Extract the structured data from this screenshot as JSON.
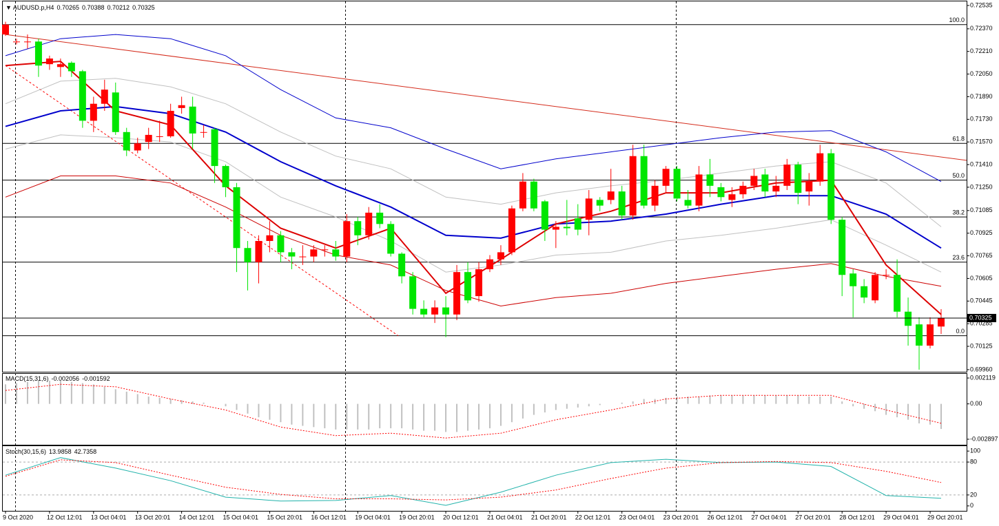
{
  "chart_data": [
    {
      "type": "candlestick",
      "title": "AUDUSD.p,H4",
      "up_color": "#ff0000",
      "down_color": "#00e600",
      "categories": [
        "9 Oct 2020",
        null,
        null,
        null,
        "12 Oct 12:01",
        null,
        null,
        null,
        "13 Oct 04:01",
        null,
        null,
        null,
        "13 Oct 20:01",
        null,
        null,
        null,
        "14 Oct 12:01",
        null,
        null,
        null,
        "15 Oct 04:01",
        null,
        null,
        null,
        "15 Oct 20:01",
        null,
        null,
        null,
        "16 Oct 12:01",
        null,
        null,
        null,
        "19 Oct 04:01",
        null,
        null,
        null,
        "19 Oct 20:01",
        null,
        null,
        null,
        "20 Oct 12:01",
        null,
        null,
        null,
        "21 Oct 04:01",
        null,
        null,
        null,
        "21 Oct 20:01",
        null,
        null,
        null,
        "22 Oct 12:01",
        null,
        null,
        null,
        "23 Oct 04:01",
        null,
        null,
        null,
        "23 Oct 20:01",
        null,
        null,
        null,
        "26 Oct 12:01",
        null,
        null,
        null,
        "27 Oct 04:01",
        null,
        null,
        null,
        "27 Oct 20:01",
        null,
        null,
        null,
        "28 Oct 12:01",
        null,
        null,
        null,
        "29 Oct 04:01",
        null,
        null,
        null,
        "29 Oct 20:01",
        null
      ],
      "open": [
        0.7233,
        0.7228,
        0.7228,
        0.7228,
        0.7212,
        0.721,
        0.7213,
        0.7207,
        0.7172,
        0.7184,
        0.7192,
        0.7164,
        0.7151,
        0.7157,
        0.7161,
        0.7161,
        0.7181,
        0.7182,
        0.7164,
        0.7166,
        0.714,
        0.7125,
        0.7082,
        0.7072,
        0.7087,
        0.7091,
        0.7079,
        0.7076,
        0.7076,
        0.7081,
        0.7081,
        0.7076,
        0.7101,
        0.7091,
        0.7107,
        0.7099,
        0.7078,
        0.7062,
        0.7039,
        0.7035,
        0.704,
        0.7035,
        0.7065,
        0.7048,
        0.7067,
        0.7074,
        0.7079,
        0.711,
        0.7129,
        0.7115,
        0.7095,
        0.7097,
        0.7103,
        0.7102,
        0.7116,
        0.7116,
        0.7122,
        0.7105,
        0.7147,
        0.7112,
        0.7126,
        0.7138,
        0.7116,
        0.7112,
        0.7134,
        0.7125,
        0.7116,
        0.712,
        0.7126,
        0.7134,
        0.7122,
        0.7126,
        0.7141,
        0.7122,
        0.7129,
        0.7149,
        0.7102,
        0.7064,
        0.7055,
        0.7045,
        0.7063,
        0.7063,
        0.7037,
        0.7028,
        0.7013,
        0.70265
      ],
      "high": [
        0.7242,
        0.723,
        0.7233,
        0.723,
        0.7218,
        0.7216,
        0.7214,
        0.7208,
        0.7189,
        0.7201,
        0.7199,
        0.7167,
        0.716,
        0.7167,
        0.7172,
        0.7184,
        0.7189,
        0.7189,
        0.7169,
        0.7167,
        0.7141,
        0.7128,
        0.7087,
        0.7091,
        0.7101,
        0.7094,
        0.7082,
        0.7084,
        0.7084,
        0.7084,
        0.7087,
        0.7106,
        0.7104,
        0.7111,
        0.7113,
        0.7101,
        0.7079,
        0.7065,
        0.7045,
        0.7045,
        0.7048,
        0.707,
        0.7072,
        0.7072,
        0.7077,
        0.7084,
        0.7112,
        0.7135,
        0.7131,
        0.7116,
        0.7101,
        0.7116,
        0.7113,
        0.7123,
        0.7118,
        0.7138,
        0.7126,
        0.7155,
        0.7155,
        0.713,
        0.714,
        0.714,
        0.7123,
        0.714,
        0.7145,
        0.7128,
        0.7125,
        0.7129,
        0.7138,
        0.7138,
        0.7133,
        0.7145,
        0.7143,
        0.7135,
        0.7155,
        0.7152,
        0.7104,
        0.7067,
        0.706,
        0.7065,
        0.7067,
        0.7074,
        0.7047,
        0.7033,
        0.7033,
        0.70388
      ],
      "low": [
        0.7232,
        0.7226,
        0.7223,
        0.7203,
        0.7208,
        0.7203,
        0.7203,
        0.7167,
        0.7164,
        0.7179,
        0.7162,
        0.7147,
        0.7149,
        0.7152,
        0.7157,
        0.716,
        0.7177,
        0.7152,
        0.716,
        0.7128,
        0.7118,
        0.7065,
        0.7052,
        0.7057,
        0.7079,
        0.7072,
        0.7067,
        0.707,
        0.7072,
        0.7076,
        0.7073,
        0.7072,
        0.7084,
        0.7088,
        0.7096,
        0.7076,
        0.7057,
        0.7035,
        0.7033,
        0.7029,
        0.7019,
        0.7031,
        0.7043,
        0.7044,
        0.7065,
        0.707,
        0.7077,
        0.7108,
        0.7108,
        0.7087,
        0.7082,
        0.7091,
        0.7091,
        0.7091,
        0.7108,
        0.7113,
        0.7102,
        0.7102,
        0.711,
        0.7108,
        0.7121,
        0.7115,
        0.711,
        0.7108,
        0.7118,
        0.7115,
        0.7111,
        0.7117,
        0.7123,
        0.7118,
        0.7118,
        0.7123,
        0.7113,
        0.7112,
        0.7126,
        0.7099,
        0.7048,
        0.7033,
        0.7043,
        0.7043,
        0.706,
        0.7033,
        0.7013,
        0.6996,
        0.7011,
        0.70212
      ],
      "close": [
        0.724,
        0.7228,
        0.7228,
        0.7211,
        0.7216,
        0.7212,
        0.7207,
        0.7172,
        0.7184,
        0.7194,
        0.7164,
        0.7151,
        0.7156,
        0.7162,
        0.7161,
        0.7179,
        0.7183,
        0.7163,
        0.7164,
        0.714,
        0.7125,
        0.7082,
        0.7072,
        0.7087,
        0.7091,
        0.7079,
        0.7076,
        0.7076,
        0.7081,
        0.7081,
        0.7076,
        0.7101,
        0.7091,
        0.7107,
        0.7099,
        0.7078,
        0.7062,
        0.7039,
        0.7035,
        0.704,
        0.7035,
        0.7065,
        0.7045,
        0.7067,
        0.7074,
        0.7079,
        0.711,
        0.7129,
        0.711,
        0.7095,
        0.7097,
        0.7096,
        0.7095,
        0.7117,
        0.7112,
        0.7122,
        0.7105,
        0.7147,
        0.7112,
        0.7126,
        0.7138,
        0.7117,
        0.7112,
        0.7134,
        0.7126,
        0.7118,
        0.712,
        0.7126,
        0.7133,
        0.7122,
        0.7126,
        0.7141,
        0.7121,
        0.7129,
        0.7149,
        0.7102,
        0.7063,
        0.7055,
        0.7047,
        0.7063,
        0.7063,
        0.7037,
        0.7027,
        0.7013,
        0.7028,
        0.70325
      ],
      "overlays": [
        {
          "color": "#c0c0c0",
          "width": 1,
          "values": [
            0.7184,
            0.72,
            0.7202,
            0.7196,
            0.7184,
            0.7164,
            0.7147,
            0.7138,
            0.7118,
            0.7113,
            0.7121,
            0.7126,
            0.713,
            0.7135,
            0.714,
            0.7143,
            0.7128,
            0.7097
          ]
        },
        {
          "color": "#c0c0c0",
          "width": 1,
          "values": [
            0.7152,
            0.7162,
            0.716,
            0.7157,
            0.7143,
            0.7118,
            0.7104,
            0.7087,
            0.7065,
            0.707,
            0.7077,
            0.7079,
            0.7087,
            0.7091,
            0.7096,
            0.7102,
            0.7084,
            0.7065
          ]
        },
        {
          "color": "#0000cc",
          "width": 1,
          "values": [
            0.7218,
            0.723,
            0.7233,
            0.723,
            0.7218,
            0.7194,
            0.7174,
            0.7167,
            0.7152,
            0.7138,
            0.7145,
            0.715,
            0.7155,
            0.716,
            0.7164,
            0.7165,
            0.715,
            0.7129
          ]
        },
        {
          "color": "#cc0000",
          "width": 1,
          "values": [
            0.7118,
            0.7133,
            0.7133,
            0.7128,
            0.7111,
            0.7091,
            0.7077,
            0.707,
            0.7052,
            0.7041,
            0.7047,
            0.705,
            0.7057,
            0.7062,
            0.7067,
            0.7071,
            0.7062,
            0.7055
          ]
        },
        {
          "color": "#0000cc",
          "width": 2,
          "values": [
            0.7168,
            0.7179,
            0.7182,
            0.7177,
            0.7164,
            0.7143,
            0.7126,
            0.7111,
            0.7091,
            0.7089,
            0.7099,
            0.7101,
            0.7106,
            0.7113,
            0.7119,
            0.7119,
            0.7106,
            0.7082
          ]
        },
        {
          "color": "#dd0000",
          "width": 2,
          "values": [
            0.7211,
            0.7214,
            0.7179,
            0.7169,
            0.7126,
            0.7096,
            0.7082,
            0.7096,
            0.705,
            0.7074,
            0.7099,
            0.7108,
            0.7121,
            0.7121,
            0.7128,
            0.713,
            0.707,
            0.7035
          ]
        }
      ],
      "trendlines": [
        {
          "color": "#d42a1a",
          "dashed": false,
          "values": [
            0.7233,
            0.7144
          ]
        },
        {
          "color": "#ff0000",
          "dashed": true,
          "values": [
            0.7211,
            0.702
          ]
        }
      ],
      "levels": [
        {
          "value": 0.724,
          "label": "100.0"
        },
        {
          "value": 0.7156,
          "label": "61.8"
        },
        {
          "value": 0.713,
          "label": "50.0"
        },
        {
          "value": 0.7104,
          "label": "38.2"
        },
        {
          "value": 0.7072,
          "label": "23.6"
        },
        {
          "value": 0.702,
          "label": "0.0"
        }
      ],
      "ylim": [
        0.69945,
        0.72564
      ],
      "yticks": [
        0.72535,
        {
          "value": 0.7237,
          "label": "0.72370"
        },
        {
          "value": 0.7221,
          "label": "0.72210"
        },
        {
          "value": 0.7205,
          "label": "0.72050"
        },
        {
          "value": 0.7189,
          "label": "0.71890"
        },
        {
          "value": 0.7173,
          "label": "0.71730"
        },
        {
          "value": 0.7157,
          "label": "0.71570"
        },
        {
          "value": 0.7141,
          "label": "0.71410"
        },
        {
          "value": 0.7125,
          "label": "0.71250"
        },
        0.71085,
        0.70925,
        0.70765,
        0.70605,
        0.70445,
        0.70285,
        0.70125,
        {
          "value": 0.6996,
          "label": "0.69960"
        }
      ]
    },
    {
      "type": "macd",
      "title": "MACD(15,31,6)",
      "histogram": {
        "color": "#c0c0c0",
        "values": [
          0.0016,
          0.0017,
          0.0018,
          0.0019,
          0.0019,
          0.0019,
          0.0018,
          0.0017,
          0.0016,
          0.0014,
          0.0012,
          0.001,
          0.0008,
          0.0006,
          0.0005,
          0.0004,
          0.0003,
          0.0002,
          0.0001,
          0.0,
          -0.0002,
          -0.0005,
          -0.0008,
          -0.0011,
          -0.0013,
          -0.0015,
          -0.0017,
          -0.0018,
          -0.0019,
          -0.002,
          -0.0021,
          -0.0021,
          -0.0021,
          -0.0021,
          -0.002,
          -0.002,
          -0.002,
          -0.0021,
          -0.0022,
          -0.0022,
          -0.0023,
          -0.0023,
          -0.0022,
          -0.0021,
          -0.002,
          -0.0018,
          -0.0015,
          -0.0012,
          -0.0009,
          -0.0007,
          -0.0005,
          -0.0004,
          -0.0003,
          -0.0002,
          -0.0001,
          0.0,
          0.0001,
          0.0002,
          0.0004,
          0.0004,
          0.0005,
          0.0006,
          0.0006,
          0.0006,
          0.0007,
          0.0007,
          0.0007,
          0.0007,
          0.0007,
          0.0007,
          0.0007,
          0.0007,
          0.0007,
          0.0006,
          0.0006,
          0.0006,
          0.0002,
          -0.0002,
          -0.0004,
          -0.0006,
          -0.0009,
          -0.0011,
          -0.0013,
          -0.0016,
          -0.0017,
          -0.002056
        ]
      },
      "signal": {
        "color": "#ff0000",
        "values": [
          0.0011,
          0.0016,
          0.0014,
          0.0004,
          -0.0005,
          -0.0019,
          -0.0026,
          -0.0024,
          -0.0028,
          -0.0024,
          -0.0013,
          -0.0005,
          0.0004,
          0.0007,
          0.0007,
          0.0007,
          -0.0005,
          -0.001592
        ]
      },
      "ylim": [
        -0.00335,
        0.00246
      ],
      "yticks": [
        0.002119,
        {
          "value": 0,
          "label": "0.00"
        },
        -0.002897
      ]
    },
    {
      "type": "stochastic",
      "title": "Stoch(30,15,6)",
      "main": {
        "color": "#20b2aa",
        "values": [
          56,
          88,
          69,
          46,
          16,
          9,
          10,
          19,
          1,
          25,
          56,
          79,
          85,
          79,
          80,
          72,
          19,
          13.9858
        ]
      },
      "signal": {
        "color": "#ff0000",
        "values": [
          54,
          84,
          79,
          56,
          34,
          21,
          13,
          13,
          11,
          16,
          29,
          50,
          69,
          79,
          81,
          79,
          63,
          42.7358
        ]
      },
      "levels": [
        80,
        20
      ],
      "ylim": [
        -9,
        109
      ],
      "yticks": [
        100,
        80,
        20,
        0
      ]
    }
  ]
}
